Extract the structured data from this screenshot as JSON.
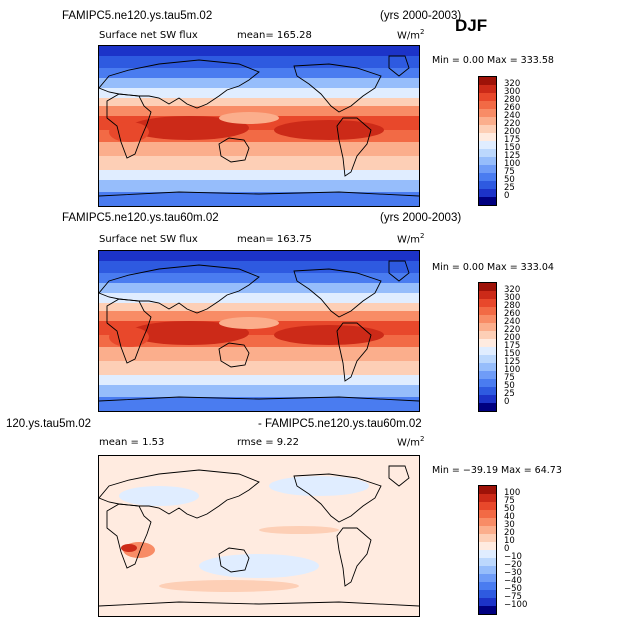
{
  "season": "DJF",
  "panels": [
    {
      "case_title": "FAMIPC5.ne120.ys.tau5m.02",
      "years": "(yrs 2000-2003)",
      "field_label": "Surface net SW flux",
      "stat1": "mean= 165.28",
      "stat2": "",
      "units": "W/m",
      "units_exp": "2",
      "minmax": "Min =    0.00 Max = 333.58",
      "colors": [
        "#000080",
        "#1c33c8",
        "#2e5ae0",
        "#4a7cf0",
        "#6f9cf7",
        "#96bdfb",
        "#bcd8fd",
        "#e0edff",
        "#ffebe0",
        "#fdcfb6",
        "#fbae8c",
        "#f88c66",
        "#f26a45",
        "#e8482b",
        "#cc2a18",
        "#9e1208"
      ],
      "labels": [
        "0",
        "25",
        "50",
        "75",
        "100",
        "125",
        "150",
        "175",
        "200",
        "220",
        "240",
        "260",
        "280",
        "300",
        "320"
      ]
    },
    {
      "case_title": "FAMIPC5.ne120.ys.tau60m.02",
      "years": "(yrs 2000-2003)",
      "field_label": "Surface net SW flux",
      "stat1": "mean= 163.75",
      "stat2": "",
      "units": "W/m",
      "units_exp": "2",
      "minmax": "Min =    0.00 Max = 333.04",
      "colors": [
        "#000080",
        "#1c33c8",
        "#2e5ae0",
        "#4a7cf0",
        "#6f9cf7",
        "#96bdfb",
        "#bcd8fd",
        "#e0edff",
        "#ffebe0",
        "#fdcfb6",
        "#fbae8c",
        "#f88c66",
        "#f26a45",
        "#e8482b",
        "#cc2a18",
        "#9e1208"
      ],
      "labels": [
        "0",
        "25",
        "50",
        "75",
        "100",
        "125",
        "150",
        "175",
        "200",
        "220",
        "240",
        "260",
        "280",
        "300",
        "320"
      ]
    },
    {
      "case_title": "120.ys.tau5m.02",
      "years": "- FAMIPC5.ne120.ys.tau60m.02",
      "field_label": "",
      "stat1": "mean =    1.53",
      "stat2": "rmse =    9.22",
      "units": "W/m",
      "units_exp": "2",
      "minmax": "Min = −39.19 Max =  64.73",
      "colors": [
        "#000080",
        "#1c33c8",
        "#2e5ae0",
        "#4a7cf0",
        "#6f9cf7",
        "#96bdfb",
        "#bcd8fd",
        "#e0edff",
        "#ffebe0",
        "#fdcfb6",
        "#fbae8c",
        "#f88c66",
        "#f26a45",
        "#e8482b",
        "#cc2a18",
        "#9e1208"
      ],
      "labels": [
        "−100",
        "−75",
        "−50",
        "−40",
        "−30",
        "−20",
        "−10",
        "0",
        "10",
        "20",
        "30",
        "40",
        "50",
        "75",
        "100"
      ]
    }
  ],
  "chart_data": [
    {
      "type": "heatmap",
      "title": "FAMIPC5.ne120.ys.tau5m.02",
      "subtitle": "Surface net SW flux",
      "units": "W/m2",
      "mean": 165.28,
      "min": 0.0,
      "max": 333.58,
      "contour_levels": [
        0,
        25,
        50,
        75,
        100,
        125,
        150,
        175,
        200,
        220,
        240,
        260,
        280,
        300,
        320
      ]
    },
    {
      "type": "heatmap",
      "title": "FAMIPC5.ne120.ys.tau60m.02",
      "subtitle": "Surface net SW flux",
      "units": "W/m2",
      "mean": 163.75,
      "min": 0.0,
      "max": 333.04,
      "contour_levels": [
        0,
        25,
        50,
        75,
        100,
        125,
        150,
        175,
        200,
        220,
        240,
        260,
        280,
        300,
        320
      ]
    },
    {
      "type": "heatmap",
      "title": "120.ys.tau5m.02 - FAMIPC5.ne120.ys.tau60m.02",
      "units": "W/m2",
      "mean": 1.53,
      "rmse": 9.22,
      "min": -39.19,
      "max": 64.73,
      "contour_levels": [
        -100,
        -75,
        -50,
        -40,
        -30,
        -20,
        -10,
        0,
        10,
        20,
        30,
        40,
        50,
        75,
        100
      ]
    }
  ]
}
